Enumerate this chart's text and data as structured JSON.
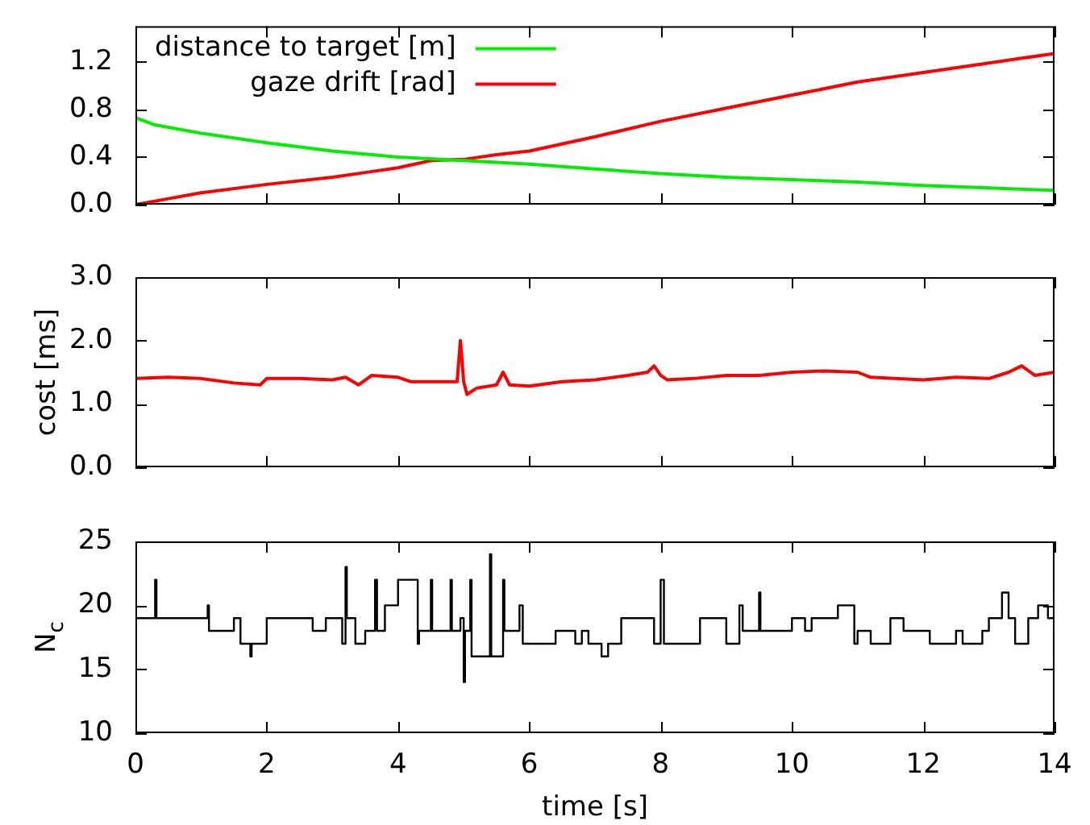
{
  "chart_data": [
    {
      "type": "line",
      "legend": "top left",
      "tick_labels": "y",
      "xlim": [
        0,
        14
      ],
      "xticks": [
        0,
        2,
        4,
        6,
        8,
        10,
        12,
        14
      ],
      "ylim": [
        0,
        1.5
      ],
      "yticks": [
        {
          "value": 0,
          "label": "0.0"
        },
        {
          "value": 0.4,
          "label": "0.4"
        },
        {
          "value": 0.8,
          "label": "0.8"
        },
        {
          "value": 1.2,
          "label": "1.2"
        }
      ],
      "x": [
        0,
        0.3,
        1,
        2,
        3,
        4,
        5,
        6,
        7,
        8,
        9,
        10,
        11,
        12,
        13,
        14
      ],
      "series": [
        {
          "name": "distance to target [m]",
          "color": "#00ee00",
          "values": [
            0.73,
            0.67,
            0.6,
            0.52,
            0.45,
            0.4,
            0.37,
            0.34,
            0.3,
            0.26,
            0.23,
            0.21,
            0.19,
            0.16,
            0.14,
            0.12
          ]
        },
        {
          "name": "gaze drift [rad]",
          "color": "#ff0000",
          "x": [
            0,
            0.5,
            1,
            2,
            3,
            3.5,
            4,
            4.5,
            5,
            5.5,
            6,
            7,
            8,
            9,
            10,
            11,
            12,
            13,
            14
          ],
          "values": [
            0,
            0.05,
            0.1,
            0.17,
            0.23,
            0.27,
            0.31,
            0.37,
            0.38,
            0.42,
            0.45,
            0.57,
            0.7,
            0.81,
            0.92,
            1.03,
            1.11,
            1.19,
            1.27
          ]
        }
      ]
    },
    {
      "type": "line",
      "ylabel": "cost [ms]",
      "tick_labels": "y",
      "xlim": [
        0,
        14
      ],
      "xticks": [
        0,
        2,
        4,
        6,
        8,
        10,
        12,
        14
      ],
      "ylim": [
        0,
        3
      ],
      "yticks": [
        {
          "value": 0,
          "label": "0.0"
        },
        {
          "value": 1,
          "label": "1.0"
        },
        {
          "value": 2,
          "label": "2.0"
        },
        {
          "value": 3,
          "label": "3.0"
        }
      ],
      "x": [
        0,
        0.5,
        1,
        1.5,
        1.9,
        2,
        2.5,
        3,
        3.2,
        3.4,
        3.6,
        4,
        4.2,
        4.9,
        4.95,
        5,
        5.05,
        5.2,
        5.5,
        5.6,
        5.7,
        6,
        6.5,
        7,
        7.5,
        7.8,
        7.9,
        8,
        8.1,
        8.5,
        9,
        9.5,
        10,
        10.5,
        11,
        11.2,
        12,
        12.5,
        13,
        13.3,
        13.5,
        13.7,
        14
      ],
      "series": [
        {
          "color": "#ff0000",
          "values": [
            1.4,
            1.42,
            1.4,
            1.33,
            1.3,
            1.4,
            1.4,
            1.38,
            1.42,
            1.3,
            1.45,
            1.42,
            1.35,
            1.35,
            2.0,
            1.35,
            1.15,
            1.25,
            1.3,
            1.5,
            1.3,
            1.28,
            1.35,
            1.38,
            1.45,
            1.5,
            1.6,
            1.45,
            1.38,
            1.4,
            1.45,
            1.45,
            1.5,
            1.52,
            1.5,
            1.42,
            1.38,
            1.42,
            1.4,
            1.5,
            1.6,
            1.45,
            1.5
          ]
        }
      ]
    },
    {
      "type": "step",
      "xlabel": "time [s]",
      "ylabel": "N$_{c}$",
      "xlim": [
        0,
        14
      ],
      "xticks": [
        0,
        2,
        4,
        6,
        8,
        10,
        12,
        14
      ],
      "ylim": [
        10,
        25
      ],
      "yticks": [
        10,
        15,
        20,
        25
      ],
      "x": [
        0,
        0.3,
        0.32,
        1.1,
        1.12,
        1.5,
        1.6,
        1.75,
        1.77,
        2.0,
        2.7,
        2.9,
        3.15,
        3.2,
        3.22,
        3.35,
        3.5,
        3.65,
        3.68,
        3.8,
        4.0,
        4.3,
        4.32,
        4.5,
        4.52,
        4.8,
        4.82,
        4.95,
        5.0,
        5.02,
        5.1,
        5.12,
        5.4,
        5.42,
        5.6,
        5.62,
        5.85,
        5.9,
        6.4,
        6.7,
        6.8,
        6.9,
        7.1,
        7.2,
        7.4,
        7.9,
        8.0,
        8.05,
        8.6,
        9.0,
        9.2,
        9.25,
        9.5,
        9.52,
        10.0,
        10.2,
        10.3,
        10.7,
        10.95,
        11.0,
        11.2,
        11.5,
        11.7,
        12.1,
        12.5,
        12.6,
        12.9,
        13.0,
        13.2,
        13.3,
        13.4,
        13.6,
        13.75,
        13.9,
        14
      ],
      "series": [
        {
          "color": "#000000",
          "values": [
            19,
            22,
            19,
            20,
            18,
            19,
            17,
            16,
            17,
            19,
            18,
            19,
            17,
            23,
            19,
            17,
            18,
            22,
            18,
            20,
            22,
            17,
            18,
            22,
            18,
            22,
            18,
            19,
            14,
            18,
            22,
            16,
            24,
            16,
            22,
            18,
            20,
            17,
            18,
            17,
            18,
            17,
            16,
            17,
            19,
            17,
            22,
            17,
            19,
            17,
            20,
            18,
            21,
            18,
            19,
            18,
            19,
            20,
            17,
            18,
            17,
            19,
            18,
            17,
            18,
            17,
            18,
            19,
            21,
            19,
            17,
            19,
            20,
            19,
            19
          ]
        }
      ]
    }
  ]
}
